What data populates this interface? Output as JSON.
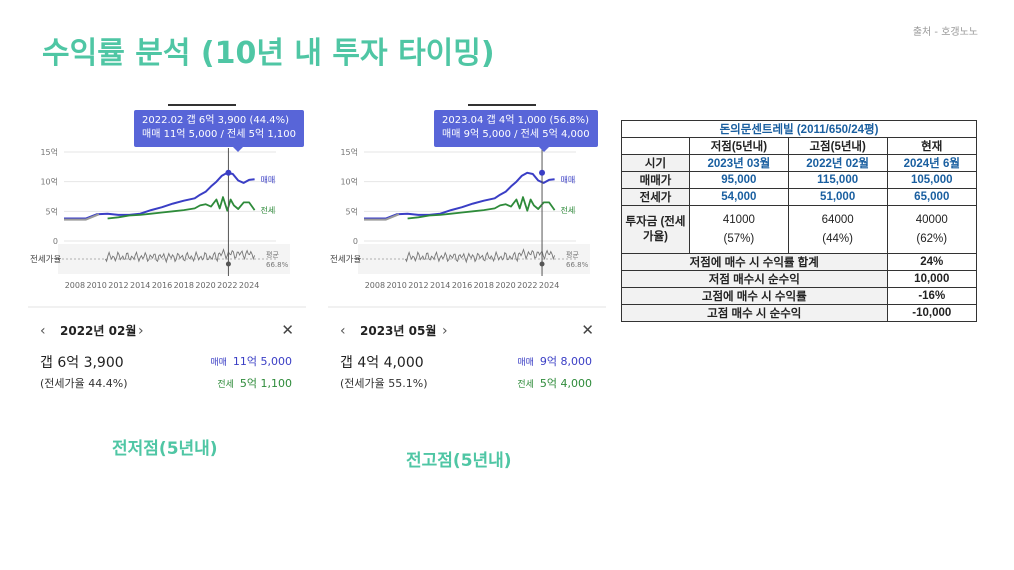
{
  "slide": {
    "title": "수익률 분석 (10년 내 투자 타이밍)",
    "source": "출처 - 호갱노노"
  },
  "colors": {
    "accent": "#4fc6a4",
    "sale_line": "#3a3ec5",
    "jeonse_line": "#2e8b3a",
    "ratio_line": "#777777",
    "tooltip_bg": "#5865d8"
  },
  "panels": [
    {
      "caption": "전저점(5년내)",
      "tooltip": {
        "line1": "2022.02  갭 6억 3,900 (44.4%)",
        "line2": "매매 11억 5,000 / 전세 5억 1,100"
      },
      "nav": {
        "prev": "‹",
        "date": "2022년 02월",
        "next": "›",
        "close": "✕"
      },
      "gap_text": "갭 6억 3,900",
      "ratio_text": "(전세가율 44.4%)",
      "sale": {
        "label": "매매",
        "value": "11억 5,000"
      },
      "jeonse": {
        "label": "전세",
        "value": "5억 1,100"
      }
    },
    {
      "caption": "전고점(5년내)",
      "tooltip": {
        "line1": "2023.04  갭 4억 1,000 (56.8%)",
        "line2": "매매 9억 5,000 / 전세 5억 4,000"
      },
      "nav": {
        "prev": "‹",
        "date": "2023년 05월",
        "next": "›",
        "close": "✕"
      },
      "gap_text": "갭 4억 4,000",
      "ratio_text": "(전세가율 55.1%)",
      "sale": {
        "label": "매매",
        "value": "9억 8,000"
      },
      "jeonse": {
        "label": "전세",
        "value": "5억 4,000"
      }
    }
  ],
  "chart_data": [
    {
      "type": "line",
      "x_ticks": [
        "2008",
        "2010",
        "2012",
        "2014",
        "2016",
        "2018",
        "2020",
        "2022",
        "2024"
      ],
      "y_ticks": [
        "15억",
        "10억",
        "5억",
        "0"
      ],
      "ylim": [
        0,
        15
      ],
      "ratio_label": "전세가율",
      "avg_label": "평균",
      "avg_value": "66.8%",
      "series": [
        {
          "name": "매매",
          "x": [
            2007.0,
            2009.0,
            2010.0,
            2011.0,
            2012.0,
            2013.0,
            2014.0,
            2015.0,
            2016.0,
            2017.0,
            2018.0,
            2019.0,
            2019.5,
            2020.0,
            2020.5,
            2021.0,
            2021.5,
            2022.0,
            2022.5,
            2023.0,
            2023.5,
            2024.0,
            2024.5
          ],
          "y": [
            3.8,
            3.8,
            4.5,
            4.6,
            4.4,
            4.4,
            4.6,
            5.2,
            5.7,
            6.3,
            6.8,
            7.2,
            7.8,
            8.3,
            9.2,
            10.0,
            11.0,
            11.5,
            11.3,
            10.2,
            9.8,
            10.3,
            10.4
          ]
        },
        {
          "name": "전세",
          "x": [
            2011.0,
            2012.0,
            2013.0,
            2014.0,
            2015.0,
            2016.0,
            2017.0,
            2018.0,
            2019.0,
            2019.5,
            2020.0,
            2020.5,
            2021.0,
            2021.3,
            2021.6,
            2022.0,
            2022.3,
            2022.6,
            2023.0,
            2023.5,
            2024.0,
            2024.5
          ],
          "y": [
            3.8,
            4.0,
            4.3,
            4.4,
            4.6,
            4.8,
            5.0,
            5.2,
            5.5,
            6.0,
            6.2,
            5.8,
            7.0,
            5.5,
            7.4,
            5.1,
            7.0,
            6.0,
            5.4,
            6.5,
            6.5,
            5.2
          ]
        }
      ],
      "cursor_x": 2022.1
    },
    {
      "type": "line",
      "x_ticks": [
        "2008",
        "2010",
        "2012",
        "2014",
        "2016",
        "2018",
        "2020",
        "2022",
        "2024"
      ],
      "y_ticks": [
        "15억",
        "10억",
        "5억",
        "0"
      ],
      "ylim": [
        0,
        15
      ],
      "ratio_label": "전세가율",
      "avg_label": "평균",
      "avg_value": "66.8%",
      "series": [
        {
          "name": "매매",
          "x": [
            2007.0,
            2009.0,
            2010.0,
            2011.0,
            2012.0,
            2013.0,
            2014.0,
            2015.0,
            2016.0,
            2017.0,
            2018.0,
            2019.0,
            2019.5,
            2020.0,
            2020.5,
            2021.0,
            2021.5,
            2022.0,
            2022.5,
            2023.0,
            2023.5,
            2024.0,
            2024.5
          ],
          "y": [
            3.8,
            3.8,
            4.5,
            4.6,
            4.4,
            4.4,
            4.6,
            5.2,
            5.7,
            6.3,
            6.8,
            7.2,
            7.8,
            8.3,
            9.2,
            10.0,
            11.0,
            11.5,
            11.3,
            10.2,
            9.8,
            10.3,
            10.4
          ]
        },
        {
          "name": "전세",
          "x": [
            2011.0,
            2012.0,
            2013.0,
            2014.0,
            2015.0,
            2016.0,
            2017.0,
            2018.0,
            2019.0,
            2019.5,
            2020.0,
            2020.5,
            2021.0,
            2021.3,
            2021.6,
            2022.0,
            2022.3,
            2022.6,
            2023.0,
            2023.5,
            2024.0,
            2024.5
          ],
          "y": [
            3.8,
            4.0,
            4.3,
            4.4,
            4.6,
            4.8,
            5.0,
            5.2,
            5.5,
            6.0,
            6.2,
            5.8,
            7.0,
            5.5,
            7.4,
            5.1,
            7.0,
            6.0,
            5.4,
            6.5,
            6.5,
            5.2
          ]
        }
      ],
      "cursor_x": 2023.35
    },
    {
      "type": "table",
      "title": "돈의문센트레빌 (2011/650/24평)",
      "header": [
        "",
        "저점(5년내)",
        "고점(5년내)",
        "현재"
      ],
      "rows": [
        [
          "시기",
          "2023년 03월",
          "2022년 02월",
          "2024년 6월"
        ],
        [
          "매매가",
          "95,000",
          "115,000",
          "105,000"
        ],
        [
          "전세가",
          "54,000",
          "51,000",
          "65,000"
        ],
        [
          "투자금 (전세가율)",
          "41000\n(57%)",
          "64000\n(44%)",
          "40000\n(62%)"
        ]
      ],
      "summary": [
        [
          "저점에 매수 시 수익률 합계",
          "24%"
        ],
        [
          "저점 매수시 순수익",
          "10,000"
        ],
        [
          "고점에 매수 시 수익률",
          "-16%"
        ],
        [
          "고점 매수 시 순수익",
          "-10,000"
        ]
      ]
    }
  ]
}
